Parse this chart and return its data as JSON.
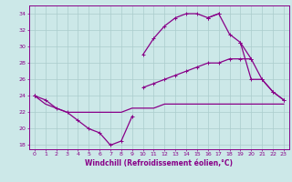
{
  "xlabel": "Windchill (Refroidissement éolien,°C)",
  "background_color": "#cce8e8",
  "grid_color": "#aacccc",
  "line_color": "#880088",
  "hours": [
    0,
    1,
    2,
    3,
    4,
    5,
    6,
    7,
    8,
    9,
    10,
    11,
    12,
    13,
    14,
    15,
    16,
    17,
    18,
    19,
    20,
    21,
    22,
    23
  ],
  "line_dip": [
    24.0,
    23.5,
    22.5,
    22.0,
    21.0,
    20.0,
    19.5,
    18.0,
    18.5,
    21.5,
    null,
    null,
    null,
    null,
    null,
    null,
    null,
    null,
    null,
    null,
    null,
    null,
    null,
    null
  ],
  "line_peak": [
    null,
    null,
    null,
    null,
    null,
    null,
    null,
    null,
    null,
    null,
    29.0,
    31.0,
    32.5,
    33.5,
    34.0,
    34.0,
    33.5,
    34.0,
    null,
    null,
    null,
    null,
    null,
    null
  ],
  "line_drop": [
    null,
    null,
    null,
    null,
    null,
    null,
    null,
    null,
    null,
    null,
    null,
    null,
    null,
    null,
    null,
    null,
    33.5,
    34.0,
    31.5,
    30.5,
    26.0,
    26.0,
    24.5,
    23.5
  ],
  "line_mid": [
    24.0,
    null,
    null,
    null,
    null,
    null,
    null,
    null,
    null,
    null,
    25.0,
    25.5,
    26.0,
    26.5,
    27.0,
    27.5,
    28.0,
    28.0,
    28.5,
    28.5,
    28.5,
    null,
    null,
    null
  ],
  "line_flat": [
    24.0,
    23.0,
    22.5,
    22.0,
    22.0,
    22.0,
    22.0,
    22.0,
    22.0,
    22.5,
    22.5,
    22.5,
    23.0,
    23.0,
    23.0,
    23.0,
    23.0,
    23.0,
    23.0,
    23.0,
    23.0,
    23.0,
    23.0,
    23.0
  ],
  "line_diag": [
    24.0,
    null,
    null,
    null,
    null,
    null,
    null,
    null,
    null,
    null,
    null,
    null,
    null,
    null,
    null,
    null,
    null,
    null,
    null,
    30.5,
    28.5,
    26.0,
    24.5,
    23.5
  ],
  "ylim": [
    17.5,
    35.0
  ],
  "xlim": [
    -0.5,
    23.5
  ],
  "yticks": [
    18,
    20,
    22,
    24,
    26,
    28,
    30,
    32,
    34
  ],
  "xticks": [
    0,
    1,
    2,
    3,
    4,
    5,
    6,
    7,
    8,
    9,
    10,
    11,
    12,
    13,
    14,
    15,
    16,
    17,
    18,
    19,
    20,
    21,
    22,
    23
  ]
}
